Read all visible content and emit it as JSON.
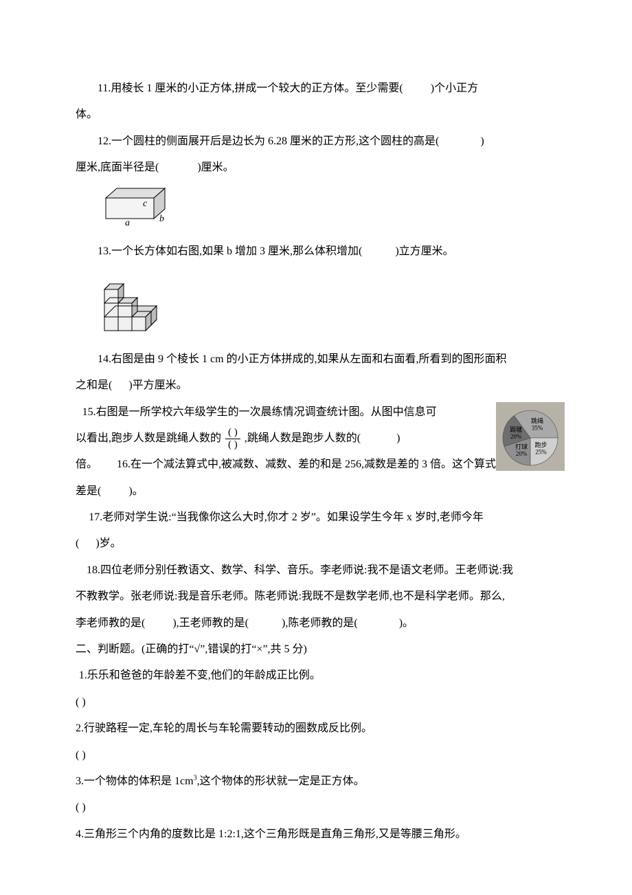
{
  "q11": {
    "text_a": "11.用棱长 1 厘米的小正方体,拼成一个较大的正方体。至少需要(",
    "text_b": ")个小正方",
    "text_c": "体。"
  },
  "q12": {
    "text_a": "12.一个圆柱的侧面展开后是边长为 6.28 厘米的正方形,这个圆柱的高是(",
    "text_b": ")",
    "text_c": "厘米,底面半径是(",
    "text_d": ")厘米。"
  },
  "q13": {
    "cuboid": {
      "face_top": "#e0e0e0",
      "face_side": "#cfcfcf",
      "face_front": "#f4f4f4",
      "stroke": "#000000",
      "label_a": "a",
      "label_b": "b",
      "label_c": "c"
    },
    "text_a": "13.一个长方体如右图,如果 b 增加 3 厘米,那么体积增加(",
    "text_b": ")立方厘米。"
  },
  "q14": {
    "cubes": {
      "face_top": "#dcdcdc",
      "face_side": "#bcbcbc",
      "face_front": "#f0f0f0",
      "stroke": "#000000"
    },
    "text_a": "14.右图是由 9 个棱长 1 cm 的小正方体拼成的,如果从左面和右面看,所看到的图形面积",
    "text_b": "之和是(",
    "text_c": ")平方厘米。"
  },
  "q15": {
    "text_a": "15.右图是一所学校六年级学生的一次晨练情况调查统计图。从图中信息可",
    "text_b": "以看出,跑步人数是跳绳人数的",
    "text_c": ",跳绳人数是跑步人数的(",
    "text_d": ")",
    "frac_num": "(       )",
    "frac_den": "(       )",
    "pie": {
      "bg": "#b7b2a8",
      "slices": [
        {
          "label": "打球",
          "pct": "20%",
          "color": "#8f8f8f",
          "start": 180,
          "end": 252
        },
        {
          "label": "踢毽",
          "pct": "20%",
          "color": "#6e6e6e",
          "start": 252,
          "end": 324
        },
        {
          "label": "跳绳",
          "pct": "35%",
          "color": "#a9a9a9",
          "start": 324,
          "end": 450
        },
        {
          "label": "跑步",
          "pct": "25%",
          "color": "#d0d0d0",
          "start": 90,
          "end": 180
        }
      ],
      "stroke": "#4a4a4a",
      "label_font": 9
    }
  },
  "q16": {
    "text_a": "倍。",
    "text_b": "16.在一个减法算式中,被减数、减数、差的和是 256,减数是差的 3 倍。这个算式中,",
    "text_c": "差是(",
    "text_d": ")。"
  },
  "q17": {
    "text_a": "17.老师对学生说:“当我像你这么大时,你才 2 岁”。如果设学生今年 x 岁时,老师今年",
    "text_b": "(",
    "text_c": ")岁。"
  },
  "q18": {
    "text_a": "18.四位老师分别任教语文、数学、科学、音乐。李老师说:我不是语文老师。王老师说:我",
    "text_b": "不教教学。张老师说:我是音乐老师。陈老师说:我既不是数学老师,也不是科学老师。那么,",
    "text_c": "李老师教的是(",
    "text_d": "),王老师教的是(",
    "text_e": "),陈老师教的是(",
    "text_f": ")。"
  },
  "section2": {
    "title": "二、判断题。(正确的打“√”,错误的打“×”,共 5 分)",
    "items": [
      {
        "q": "1.乐乐和爸爸的年龄差不变,他们的年龄成正比例。",
        "blank": "(           )"
      },
      {
        "q": "2.行驶路程一定,车轮的周长与车轮需要转动的圈数成反比例。",
        "blank": "(         )"
      },
      {
        "q": "3.一个物体的体积是 1cm³,这个物体的形状就一定是正方体。",
        "blank": "(           )"
      },
      {
        "q": "4.三角形三个内角的度数比是 1:2:1,这个三角形既是直角三角形,又是等腰三角形。",
        "blank": ""
      }
    ]
  }
}
